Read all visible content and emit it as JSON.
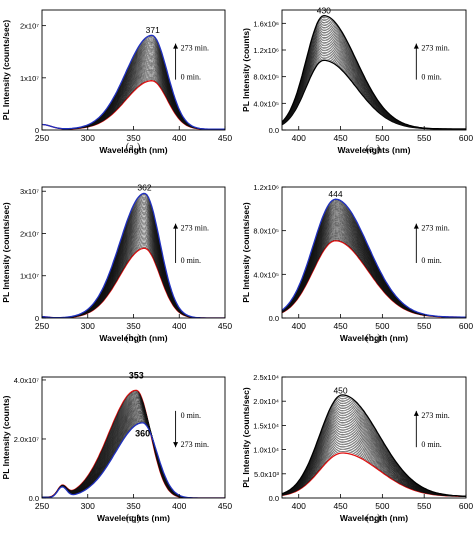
{
  "chart_data": [
    {
      "id": "a1",
      "type": "line",
      "caption": "(a₁)",
      "xlabel": "Wavelength (nm)",
      "ylabel": "PL Intensity (counts/sec)",
      "xlim": [
        250,
        450
      ],
      "ylim": [
        0,
        23000000
      ],
      "xticks": [
        250,
        300,
        350,
        400,
        450
      ],
      "yticks": [
        {
          "v": 0,
          "label": "0"
        },
        {
          "v": 10000000,
          "label": "1x10⁷"
        },
        {
          "v": 20000000,
          "label": "2x10⁷"
        }
      ],
      "peak_label": "371",
      "peak_x": 371,
      "arrow_direction": "up",
      "arrow_top_label": "273 min.",
      "arrow_bottom_label": "0 min.",
      "first_curve_color": "#e01010",
      "last_curve_color": "#2030c0",
      "series_summary": {
        "count": 40,
        "peak_nm": 371,
        "initial_peak": 9300000,
        "final_peak": 18000000,
        "pre_edge_nm": 270,
        "pre_edge_value": 900000
      }
    },
    {
      "id": "a2",
      "type": "line",
      "caption": "(a₂)",
      "xlabel": "Wavelenghts (nm)",
      "ylabel": "PL Intensity (counts)",
      "xlim": [
        380,
        600
      ],
      "ylim": [
        0,
        1800000
      ],
      "xticks": [
        400,
        450,
        500,
        550,
        600
      ],
      "yticks": [
        {
          "v": 0,
          "label": "0.0"
        },
        {
          "v": 400000,
          "label": "4.0x10⁵"
        },
        {
          "v": 800000,
          "label": "8.0x10⁵"
        },
        {
          "v": 1200000,
          "label": "1.2x10⁶"
        },
        {
          "v": 1600000,
          "label": "1.6x10⁶"
        }
      ],
      "peak_label": "430",
      "peak_x": 430,
      "arrow_direction": "up",
      "arrow_top_label": "273 min.",
      "arrow_bottom_label": "0 min.",
      "first_curve_color": "#000000",
      "last_curve_color": "#000000",
      "series_summary": {
        "count": 28,
        "peak_nm": 430,
        "initial_peak": 1030000,
        "final_peak": 1700000
      }
    },
    {
      "id": "b1",
      "type": "line",
      "caption": "(b₁)",
      "xlabel": "Wavelength (nm)",
      "ylabel": "PL Intensity (counts/sec)",
      "xlim": [
        250,
        450
      ],
      "ylim": [
        0,
        31000000
      ],
      "xticks": [
        250,
        300,
        350,
        400,
        450
      ],
      "yticks": [
        {
          "v": 0,
          "label": "0"
        },
        {
          "v": 10000000,
          "label": "1x10⁷"
        },
        {
          "v": 20000000,
          "label": "2x10⁷"
        },
        {
          "v": 30000000,
          "label": "3x10⁷"
        }
      ],
      "peak_label": "362",
      "peak_x": 362,
      "arrow_direction": "up",
      "arrow_top_label": "273 min.",
      "arrow_bottom_label": "0 min.",
      "first_curve_color": "#e01010",
      "last_curve_color": "#2030c0",
      "series_summary": {
        "count": 45,
        "peak_nm": 362,
        "initial_peak": 16500000,
        "final_peak": 29500000
      }
    },
    {
      "id": "b2",
      "type": "line",
      "caption": "(b₂)",
      "xlabel": "Wavelength (nm)",
      "ylabel": "PL Intensity (counts/sec)",
      "xlim": [
        380,
        600
      ],
      "ylim": [
        0,
        1200000
      ],
      "xticks": [
        400,
        450,
        500,
        550,
        600
      ],
      "yticks": [
        {
          "v": 0,
          "label": "0.0"
        },
        {
          "v": 400000,
          "label": "4.0x10⁵"
        },
        {
          "v": 800000,
          "label": "8.0x10⁵"
        },
        {
          "v": 1200000,
          "label": "1.2x10⁶"
        }
      ],
      "peak_label": "444",
      "peak_x": 444,
      "arrow_direction": "up",
      "arrow_top_label": "273 min.",
      "arrow_bottom_label": "0 min.",
      "first_curve_color": "#e01010",
      "last_curve_color": "#2030c0",
      "series_summary": {
        "count": 45,
        "peak_nm": 444,
        "initial_peak": 700000,
        "final_peak": 1080000
      }
    },
    {
      "id": "c1",
      "type": "line",
      "caption": "(c₁)",
      "xlabel": "Wavelenghts (nm)",
      "ylabel": "PL Intensity (counts)",
      "xlim": [
        250,
        450
      ],
      "ylim": [
        0,
        41000000
      ],
      "xticks": [
        250,
        300,
        350,
        400,
        450
      ],
      "yticks": [
        {
          "v": 0,
          "label": "0.0"
        },
        {
          "v": 20000000,
          "label": "2.0x10⁷"
        },
        {
          "v": 40000000,
          "label": "4.0x10⁷"
        }
      ],
      "peak_label": "353",
      "peak_label_2": "360",
      "peak_x": 353,
      "peak_x_final": 360,
      "arrow_direction": "down",
      "arrow_top_label": "0 min.",
      "arrow_bottom_label": "273 min.",
      "first_curve_color": "#e01010",
      "last_curve_color": "#2030c0",
      "series_summary": {
        "count": 40,
        "peak_nm_initial": 353,
        "peak_nm_final": 360,
        "initial_peak": 36500000,
        "final_peak": 25500000,
        "shoulder_nm": 272,
        "shoulder_value": 3500000
      }
    },
    {
      "id": "c2",
      "type": "line",
      "caption": "(c₂)",
      "xlabel": "Wavelength (nm)",
      "ylabel": "PL Intensity (counts/sec)",
      "xlim": [
        380,
        600
      ],
      "ylim": [
        0,
        25000
      ],
      "xticks": [
        400,
        450,
        500,
        550,
        600
      ],
      "yticks": [
        {
          "v": 0,
          "label": "0.0"
        },
        {
          "v": 5000,
          "label": "5.0x10³"
        },
        {
          "v": 10000,
          "label": "1.0x10⁴"
        },
        {
          "v": 15000,
          "label": "1.5x10⁴"
        },
        {
          "v": 20000,
          "label": "2.0x10⁴"
        },
        {
          "v": 25000,
          "label": "2.5x10⁴"
        }
      ],
      "peak_label": "450",
      "peak_x": 450,
      "arrow_direction": "up",
      "arrow_top_label": "273 min.",
      "arrow_bottom_label": "0 min.",
      "first_curve_color": "#e01010",
      "last_curve_color": "#000000",
      "series_summary": {
        "count": 35,
        "peak_nm": 450,
        "initial_peak": 9000,
        "final_peak": 21000
      }
    }
  ]
}
